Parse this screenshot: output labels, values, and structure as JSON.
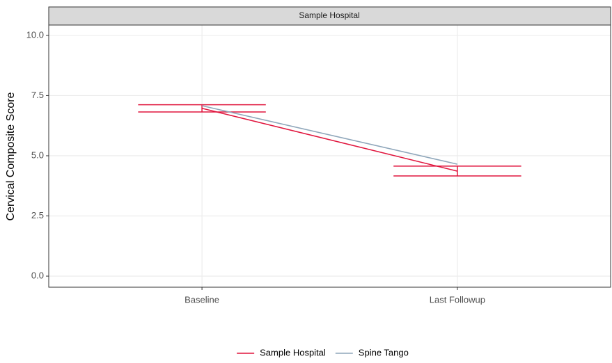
{
  "chart_data": {
    "type": "line",
    "facet": "Sample Hospital",
    "y_label": "Cervical Composite Score",
    "categories": [
      "Baseline",
      "Last Followup"
    ],
    "series": [
      {
        "name": "Sample Hospital",
        "color": "#e0153d",
        "values": [
          6.97,
          4.36
        ],
        "upper": [
          7.12,
          4.57
        ],
        "lower": [
          6.82,
          4.16
        ]
      },
      {
        "name": "Spine Tango",
        "color": "#8ea6ba",
        "values": [
          7.08,
          4.65
        ]
      }
    ],
    "ylim": [
      -0.46,
      10.43
    ],
    "yticks": [
      {
        "value": 0,
        "label": "0.0"
      },
      {
        "value": 2.5,
        "label": "2.5"
      },
      {
        "value": 5,
        "label": "5.0"
      },
      {
        "value": 7.5,
        "label": "7.5"
      },
      {
        "value": 10,
        "label": "10.0"
      }
    ],
    "grid": true,
    "legend": "bottom"
  }
}
